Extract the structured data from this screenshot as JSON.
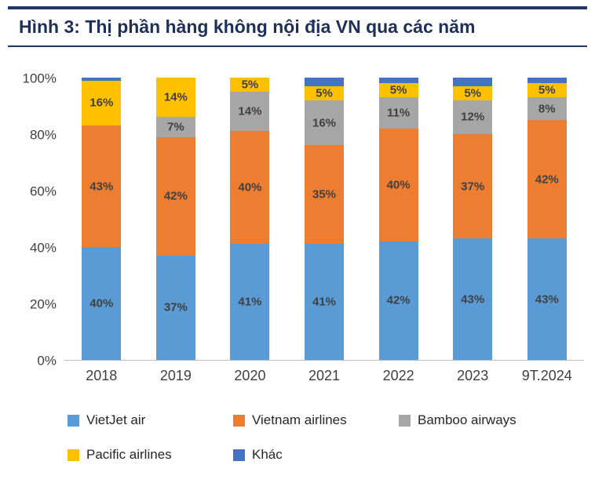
{
  "header": {
    "title": "Hình 3: Thị phần hàng không nội địa VN qua các năm"
  },
  "chart_data": {
    "type": "bar",
    "stacked": true,
    "title": "Hình 3: Thị phần hàng không nội địa VN qua các năm",
    "xlabel": "",
    "ylabel": "",
    "ylim": [
      0,
      100
    ],
    "value_suffix": "%",
    "label_threshold": 5,
    "categories": [
      "2018",
      "2019",
      "2020",
      "2021",
      "2022",
      "2023",
      "9T.2024"
    ],
    "series": [
      {
        "name": "VietJet air",
        "color": "#5B9BD5",
        "values": [
          40,
          37,
          41,
          41,
          42,
          43,
          43
        ]
      },
      {
        "name": "Vietnam airlines",
        "color": "#ED7D31",
        "values": [
          43,
          42,
          40,
          35,
          40,
          37,
          42
        ]
      },
      {
        "name": "Bamboo airways",
        "color": "#A6A6A6",
        "values": [
          0,
          7,
          14,
          16,
          11,
          12,
          8
        ]
      },
      {
        "name": "Pacific airlines",
        "color": "#FFC000",
        "values": [
          16,
          14,
          5,
          5,
          5,
          5,
          5
        ]
      },
      {
        "name": "Khác",
        "color": "#4472C4",
        "values": [
          1,
          0,
          0,
          3,
          2,
          3,
          2
        ]
      }
    ],
    "y_ticks": [
      {
        "value": 0,
        "label": "0%"
      },
      {
        "value": 20,
        "label": "20%"
      },
      {
        "value": 40,
        "label": "40%"
      },
      {
        "value": 60,
        "label": "60%"
      },
      {
        "value": 80,
        "label": "80%"
      },
      {
        "value": 100,
        "label": "100%"
      }
    ],
    "legend_position": "bottom",
    "legend_rows": [
      [
        "VietJet air",
        "Vietnam airlines",
        "Bamboo airways"
      ],
      [
        "Pacific airlines",
        "Khác"
      ]
    ],
    "grid": false
  }
}
